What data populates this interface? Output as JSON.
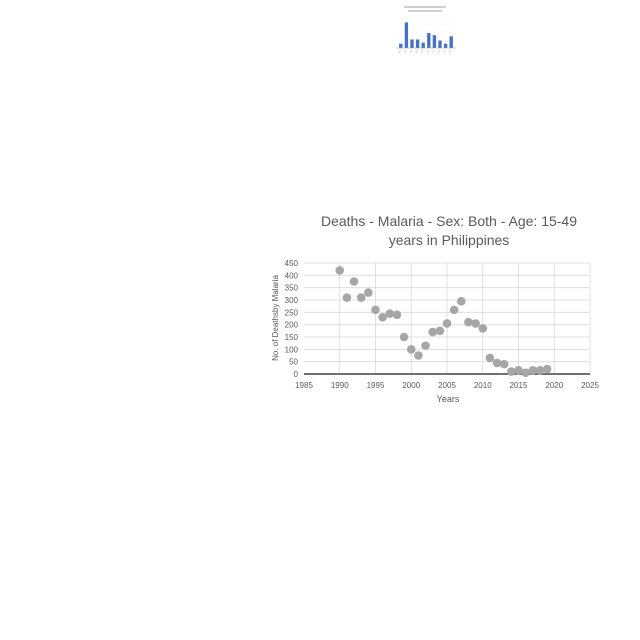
{
  "chart_data": [
    {
      "type": "bar",
      "title": "",
      "values": [
        4,
        24,
        8,
        8,
        5,
        14,
        12,
        7,
        4,
        11
      ],
      "ylim": [
        0,
        30
      ],
      "colors": {
        "bar": "#4472c4"
      }
    },
    {
      "type": "scatter",
      "title": "Deaths - Malaria - Sex: Both - Age: 15-49 years in Philippines",
      "title_lines": [
        "Deaths - Malaria - Sex: Both - Age: 15-49",
        "years in Philippines"
      ],
      "xlabel": "Years",
      "ylabel": "No. of Deathsby Malaria",
      "xlim": [
        1985,
        2025
      ],
      "ylim": [
        0,
        450
      ],
      "xticks": [
        "1985",
        "1990",
        "1995",
        "2000",
        "2005",
        "2010",
        "2015",
        "2020",
        "2025"
      ],
      "yticks": [
        "0",
        "50",
        "100",
        "150",
        "200",
        "250",
        "300",
        "350",
        "400",
        "450"
      ],
      "grid": true,
      "colors": {
        "marker": "#a6a6a6",
        "grid": "#d9d9d9",
        "axis": "#404040",
        "text": "#595959"
      },
      "series": [
        {
          "x": [
            1990,
            1991,
            1992,
            1993,
            1994,
            1995,
            1996,
            1997,
            1998,
            1999,
            2000,
            2001,
            2002,
            2003,
            2004,
            2005,
            2006,
            2007,
            2008,
            2009,
            2010,
            2011,
            2012,
            2013,
            2014,
            2015,
            2016,
            2017,
            2018,
            2019
          ],
          "y": [
            420,
            310,
            375,
            310,
            330,
            260,
            230,
            245,
            240,
            150,
            100,
            75,
            115,
            170,
            175,
            205,
            260,
            295,
            210,
            205,
            185,
            65,
            45,
            40,
            10,
            15,
            5,
            15,
            15,
            20
          ]
        }
      ]
    }
  ]
}
